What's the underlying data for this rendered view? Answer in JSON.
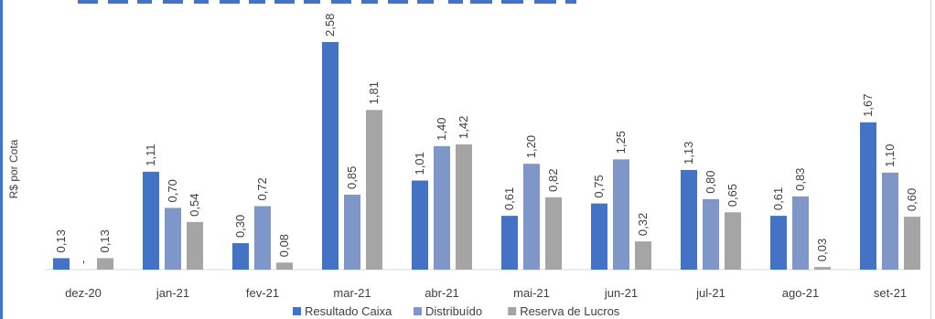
{
  "chart_data": {
    "type": "bar",
    "title": "",
    "xlabel": "",
    "ylabel": "R$ por Cota",
    "categories": [
      "dez-20",
      "jan-21",
      "fev-21",
      "mar-21",
      "abr-21",
      "mai-21",
      "jun-21",
      "jul-21",
      "ago-21",
      "set-21"
    ],
    "series": [
      {
        "name": "Resultado Caixa",
        "color": "#4472c4",
        "values": [
          0.13,
          1.11,
          0.3,
          2.58,
          1.01,
          0.61,
          0.75,
          1.13,
          0.61,
          1.67
        ],
        "labels": [
          "0,13",
          "1,11",
          "0,30",
          "2,58",
          "1,01",
          "0,61",
          "0,75",
          "1,13",
          "0,61",
          "1,67"
        ]
      },
      {
        "name": "Distribuído",
        "color": "#7f96c9",
        "values": [
          0,
          0.7,
          0.72,
          0.85,
          1.4,
          1.2,
          1.25,
          0.8,
          0.83,
          1.1
        ],
        "labels": [
          "-",
          "0,70",
          "0,72",
          "0,85",
          "1,40",
          "1,20",
          "1,25",
          "0,80",
          "0,83",
          "1,10"
        ]
      },
      {
        "name": "Reserva de Lucros",
        "color": "#a5a5a5",
        "values": [
          0.13,
          0.54,
          0.08,
          1.81,
          1.42,
          0.82,
          0.32,
          0.65,
          0.03,
          0.6
        ],
        "labels": [
          "0,13",
          "0,54",
          "0,08",
          "1,81",
          "1,42",
          "0,82",
          "0,32",
          "0,65",
          "0,03",
          "0,60"
        ]
      }
    ],
    "ylim": [
      0,
      2.58
    ],
    "grid": false,
    "legend_position": "bottom"
  }
}
